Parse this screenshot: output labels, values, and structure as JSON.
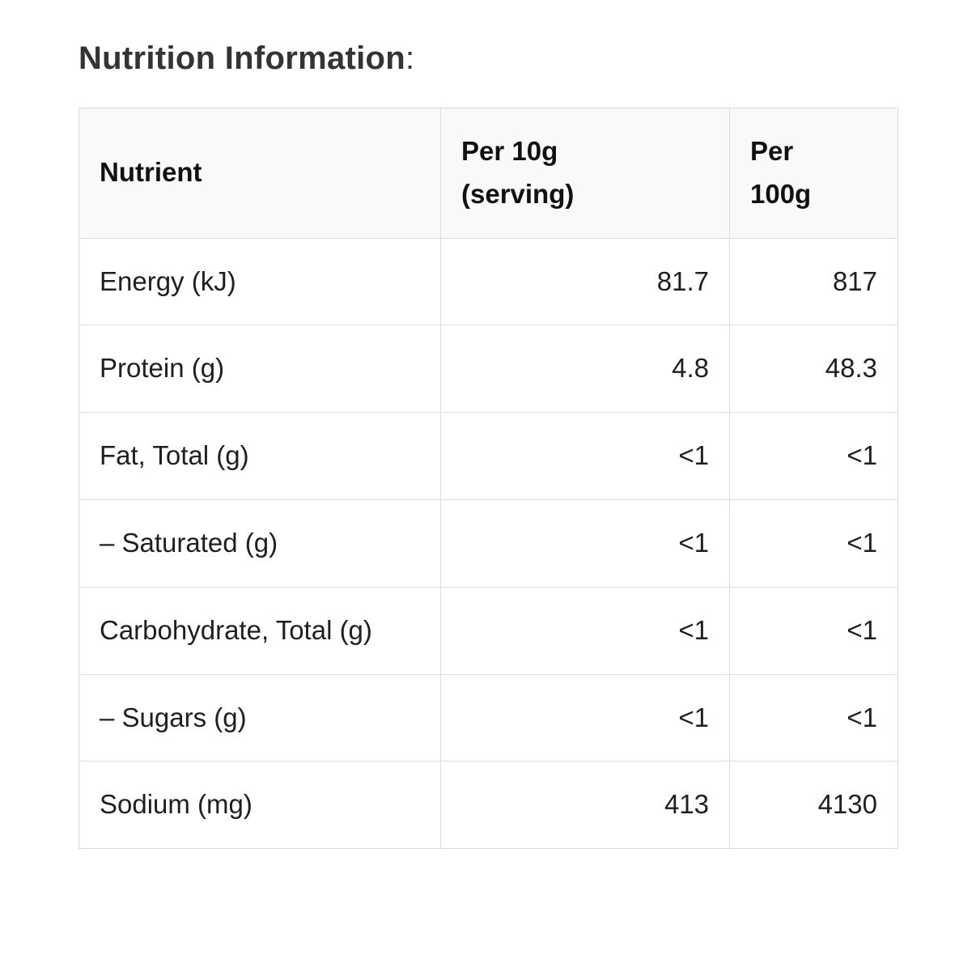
{
  "heading": {
    "text": "Nutrition Information",
    "suffix": ":"
  },
  "table": {
    "header": {
      "col1": "Nutrient",
      "col2_line1": "Per 10g",
      "col2_line2": "(serving)",
      "col3_line1": "Per",
      "col3_line2": "100g"
    },
    "rows": [
      {
        "nutrient": "Energy (kJ)",
        "per_10g": "81.7",
        "per_100g": "817"
      },
      {
        "nutrient": "Protein (g)",
        "per_10g": "4.8",
        "per_100g": "48.3"
      },
      {
        "nutrient": "Fat, Total (g)",
        "per_10g": "<1",
        "per_100g": "<1"
      },
      {
        "nutrient": "– Saturated (g)",
        "per_10g": "<1",
        "per_100g": "<1"
      },
      {
        "nutrient": "Carbohydrate, Total (g)",
        "per_10g": "<1",
        "per_100g": "<1"
      },
      {
        "nutrient": "– Sugars (g)",
        "per_10g": "<1",
        "per_100g": "<1"
      },
      {
        "nutrient": "Sodium (mg)",
        "per_10g": "413",
        "per_100g": "4130"
      }
    ],
    "colors": {
      "header_bg": "#f9f9f9",
      "border": "#dcdcdc",
      "body_text": "#1f1f1f",
      "header_text": "#111111",
      "title_text": "#343434"
    }
  }
}
